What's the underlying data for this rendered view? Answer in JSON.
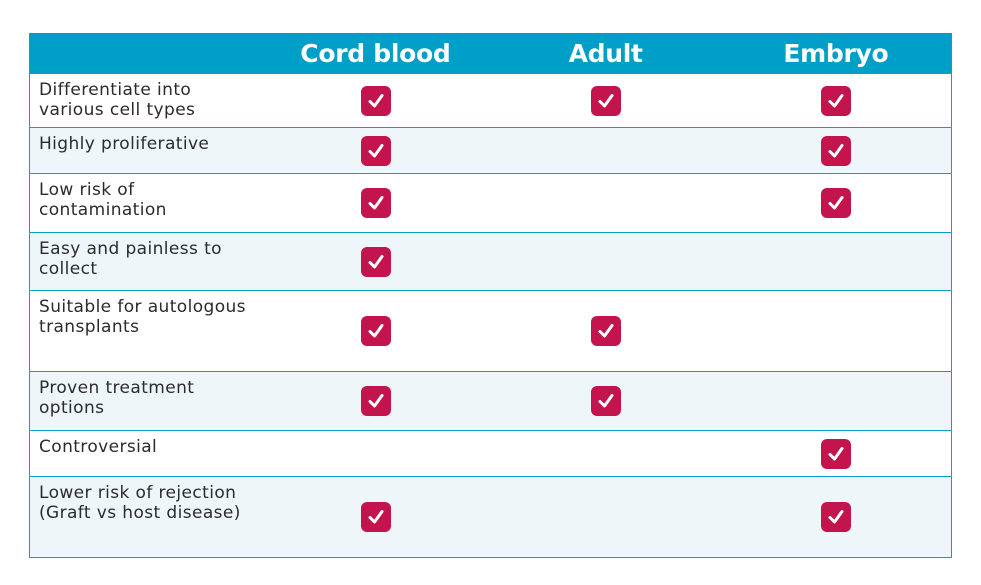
{
  "columns": [
    "Cord blood",
    "Adult",
    "Embryo"
  ],
  "colors": {
    "header": "#009fc7",
    "check": "#c4144e",
    "border": "#0aa0c8",
    "alt_row": "#eef6fa"
  },
  "rows": [
    {
      "label": "Differentiate into various cell types",
      "checks": [
        true,
        true,
        true
      ]
    },
    {
      "label": "Highly proliferative",
      "checks": [
        true,
        false,
        true
      ]
    },
    {
      "label": "Low risk of contamination",
      "checks": [
        true,
        false,
        true
      ]
    },
    {
      "label": "Easy and painless to collect",
      "checks": [
        true,
        false,
        false
      ]
    },
    {
      "label": "Suitable for autologous transplants",
      "checks": [
        true,
        true,
        false
      ]
    },
    {
      "label": "Proven treatment options",
      "checks": [
        true,
        true,
        false
      ]
    },
    {
      "label": "Controversial",
      "checks": [
        false,
        false,
        true
      ]
    },
    {
      "label": "Lower risk of rejection (Graft vs host disease)",
      "checks": [
        true,
        false,
        true
      ]
    }
  ]
}
